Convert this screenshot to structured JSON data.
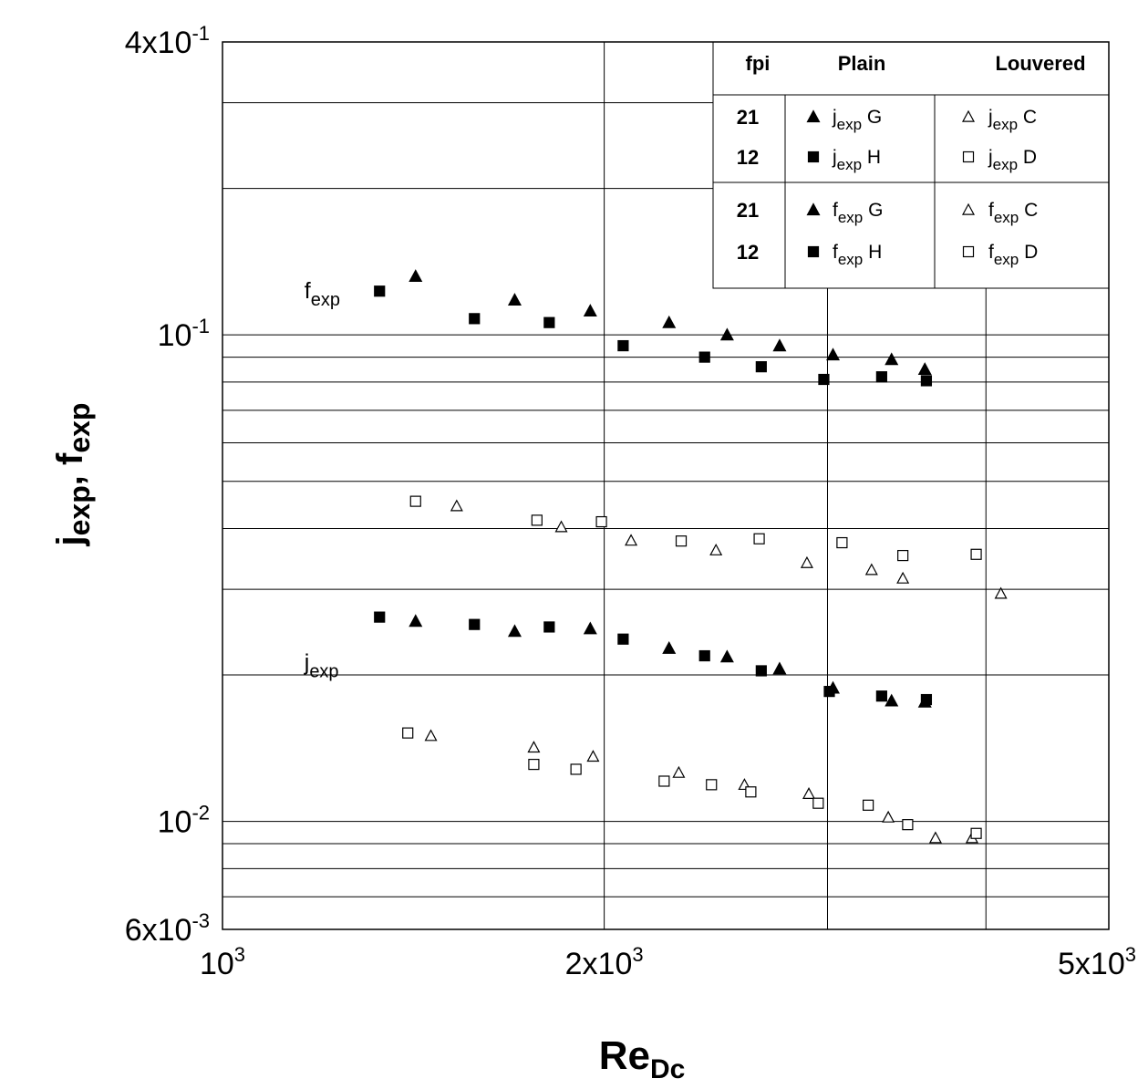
{
  "chart_data": {
    "type": "scatter",
    "xscale": "log",
    "yscale": "log",
    "xlim": [
      1000,
      5000
    ],
    "ylim": [
      0.006,
      0.4
    ],
    "xlabel": {
      "main": "Re",
      "sub": "Dc"
    },
    "ylabel": {
      "j_main": "j",
      "j_sub": "exp",
      "sep": ", ",
      "f_main": "f",
      "f_sub": "exp"
    },
    "x_ticks": [
      {
        "value": 1000,
        "base": "10",
        "exp": "3"
      },
      {
        "value": 2000,
        "base": "2x10",
        "exp": "3"
      },
      {
        "value": 5000,
        "base": "5x10",
        "exp": "3"
      }
    ],
    "y_ticks": [
      {
        "value": 0.4,
        "base": "4x10",
        "exp": "-1"
      },
      {
        "value": 0.1,
        "base": "10",
        "exp": "-1"
      },
      {
        "value": 0.01,
        "base": "10",
        "exp": "-2"
      },
      {
        "value": 0.006,
        "base": "6x10",
        "exp": "-3"
      }
    ],
    "x_gridlines": [
      2000,
      3000,
      4000
    ],
    "y_gridlines": [
      0.3,
      0.2,
      0.1,
      0.09,
      0.08,
      0.07,
      0.06,
      0.05,
      0.04,
      0.03,
      0.02,
      0.01,
      0.009,
      0.008,
      0.007
    ],
    "annotations": [
      {
        "main": "f",
        "sub": "exp",
        "x": 1250,
        "y": 0.119
      },
      {
        "main": "j",
        "sub": "exp",
        "x": 1250,
        "y": 0.0205
      }
    ],
    "legend": {
      "placement": "top-right",
      "headers": [
        "fpi",
        "Plain",
        "Louvered"
      ],
      "rows": [
        {
          "fpi": "21",
          "plain": {
            "marker": "triangle-filled",
            "main": "j",
            "sub": "exp",
            "tag": "G"
          },
          "louvered": {
            "marker": "triangle-open",
            "main": "j",
            "sub": "exp",
            "tag": "C"
          }
        },
        {
          "fpi": "12",
          "plain": {
            "marker": "square-filled",
            "main": "j",
            "sub": "exp",
            "tag": "H"
          },
          "louvered": {
            "marker": "square-open",
            "main": "j",
            "sub": "exp",
            "tag": "D"
          }
        },
        {
          "fpi": "21",
          "plain": {
            "marker": "triangle-filled",
            "main": "f",
            "sub": "exp",
            "tag": "G"
          },
          "louvered": {
            "marker": "triangle-open",
            "main": "f",
            "sub": "exp",
            "tag": "C"
          }
        },
        {
          "fpi": "12",
          "plain": {
            "marker": "square-filled",
            "main": "f",
            "sub": "exp",
            "tag": "H"
          },
          "louvered": {
            "marker": "square-open",
            "main": "f",
            "sub": "exp",
            "tag": "D"
          }
        }
      ]
    },
    "series": [
      {
        "name": "f_exp G",
        "marker": "triangle-filled",
        "x": [
          1420,
          1700,
          1950,
          2250,
          2500,
          2750,
          3030,
          3370,
          3580
        ],
        "y": [
          0.132,
          0.118,
          0.112,
          0.106,
          0.1,
          0.095,
          0.091,
          0.089,
          0.085
        ]
      },
      {
        "name": "f_exp H",
        "marker": "square-filled",
        "x": [
          1330,
          1580,
          1810,
          2070,
          2400,
          2660,
          2980,
          3310,
          3590
        ],
        "y": [
          0.123,
          0.108,
          0.106,
          0.095,
          0.09,
          0.086,
          0.081,
          0.082,
          0.0805
        ]
      },
      {
        "name": "f_exp C",
        "marker": "triangle-open",
        "x": [
          1530,
          1850,
          2100,
          2450,
          2890,
          3250,
          3440,
          4110
        ],
        "y": [
          0.0445,
          0.0403,
          0.0378,
          0.0361,
          0.034,
          0.0329,
          0.0316,
          0.0294
        ]
      },
      {
        "name": "f_exp D",
        "marker": "square-open",
        "x": [
          1420,
          1770,
          1990,
          2300,
          2650,
          3080,
          3440,
          3930
        ],
        "y": [
          0.0455,
          0.0416,
          0.0413,
          0.0377,
          0.0381,
          0.0374,
          0.0352,
          0.0354
        ]
      },
      {
        "name": "j_exp G",
        "marker": "triangle-filled",
        "x": [
          1420,
          1700,
          1950,
          2250,
          2500,
          2750,
          3030,
          3370,
          3580
        ],
        "y": [
          0.0258,
          0.0246,
          0.0249,
          0.0227,
          0.0218,
          0.0206,
          0.0188,
          0.0177,
          0.0176
        ]
      },
      {
        "name": "j_exp H",
        "marker": "square-filled",
        "x": [
          1330,
          1580,
          1810,
          2070,
          2400,
          2660,
          3010,
          3310,
          3590
        ],
        "y": [
          0.0263,
          0.0254,
          0.0251,
          0.0237,
          0.0219,
          0.0204,
          0.0185,
          0.0181,
          0.0178
        ]
      },
      {
        "name": "j_exp C",
        "marker": "triangle-open",
        "x": [
          1460,
          1760,
          1960,
          2290,
          2580,
          2900,
          3350,
          3650,
          3900
        ],
        "y": [
          0.015,
          0.0142,
          0.0136,
          0.0126,
          0.0119,
          0.0114,
          0.0102,
          0.00925,
          0.00925
        ]
      },
      {
        "name": "j_exp D",
        "marker": "square-open",
        "x": [
          1400,
          1760,
          1900,
          2230,
          2430,
          2610,
          2950,
          3230,
          3470,
          3930
        ],
        "y": [
          0.0152,
          0.0131,
          0.0128,
          0.0121,
          0.0119,
          0.0115,
          0.0109,
          0.0108,
          0.00985,
          0.00945
        ]
      }
    ]
  }
}
